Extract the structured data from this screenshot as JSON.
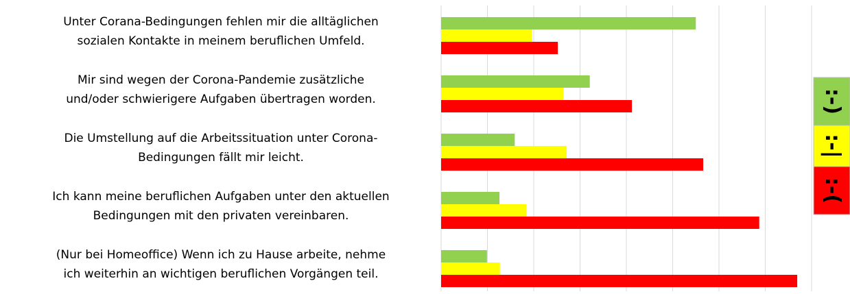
{
  "chart_data": {
    "type": "bar",
    "orientation": "horizontal",
    "categories": [
      [
        "Unter Corana-Bedingungen fehlen mir die alltäglichen",
        "sozialen Kontakte in meinem beruflichen Umfeld."
      ],
      [
        "Mir sind wegen der Corona-Pandemie zusätzliche",
        "und/oder schwierigere Aufgaben übertragen worden."
      ],
      [
        "Die Umstellung auf die Arbeitssituation unter Corona-",
        "Bedingungen fällt mir leicht."
      ],
      [
        "Ich kann meine beruflichen Aufgaben unter den aktuellen",
        "Bedingungen mit den privaten vereinbaren."
      ],
      [
        "(Nur bei Homeoffice) Wenn ich zu Hause arbeite, nehme",
        "ich weiterhin an wichtigen beruflichen Vorgängen teil."
      ]
    ],
    "series": [
      {
        "name": ":-)",
        "color": "#92d050",
        "values": [
          55,
          32.1,
          15.9,
          12.6,
          9.9
        ]
      },
      {
        "name": ":-|",
        "color": "#ffff00",
        "values": [
          19.6,
          26.4,
          27.1,
          18.4,
          12.7
        ]
      },
      {
        "name": ":-(",
        "color": "#ff0000",
        "values": [
          25.2,
          41.2,
          56.6,
          68.7,
          76.9
        ]
      }
    ],
    "xlim": [
      0,
      80
    ],
    "xticks": [
      0,
      10,
      20,
      30,
      40,
      50,
      60,
      70,
      80
    ],
    "grid": true,
    "legend": "right"
  }
}
